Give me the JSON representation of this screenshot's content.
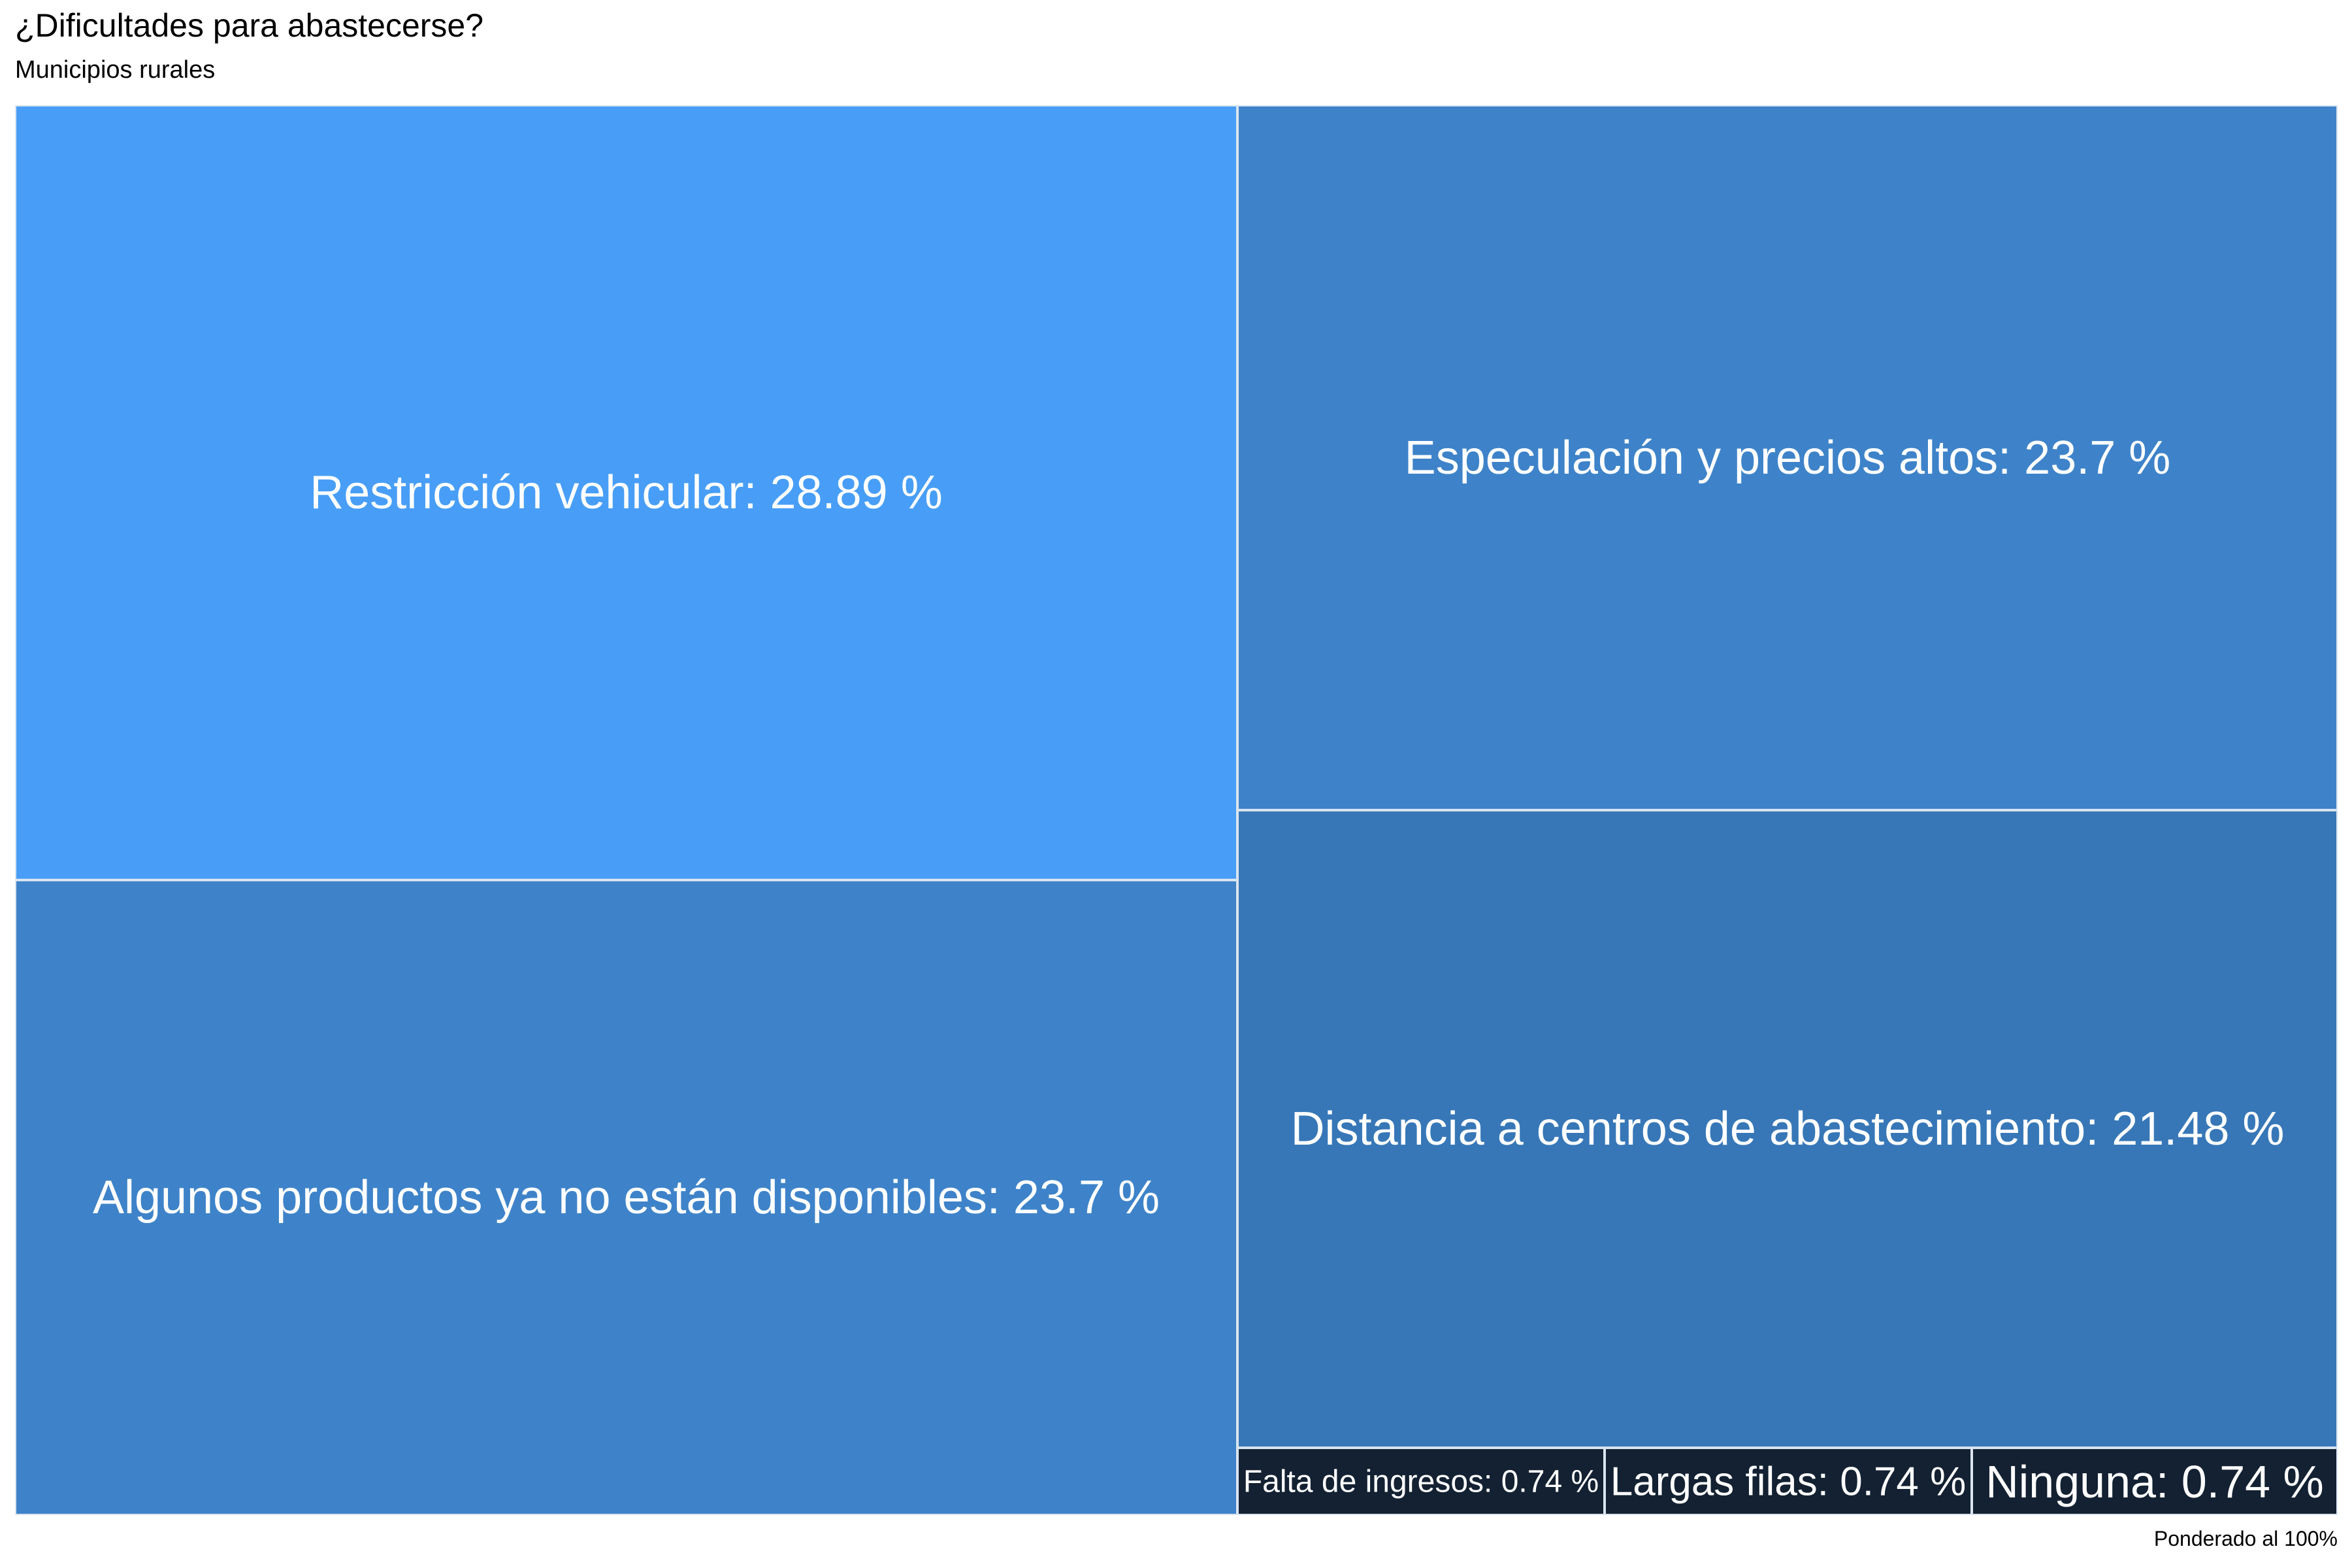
{
  "chart_data": {
    "type": "treemap",
    "title": "¿Dificultades para abastecerse?",
    "subtitle": "Municipios rurales",
    "caption": "Ponderado al 100%",
    "items": [
      {
        "label": "Restricción vehicular: 28.89 %",
        "category": "Restricción vehicular",
        "value": 28.89,
        "color": "#489ef6"
      },
      {
        "label": "Algunos productos ya no están disponibles: 23.7 %",
        "category": "Algunos productos ya no están disponibles",
        "value": 23.7,
        "color": "#3e83c9"
      },
      {
        "label": "Especulación y precios altos: 23.7 %",
        "category": "Especulación y precios altos",
        "value": 23.7,
        "color": "#3e83c9"
      },
      {
        "label": "Distancia a centros de abastecimiento: 21.48 %",
        "category": "Distancia a centros de abastecimiento",
        "value": 21.48,
        "color": "#3777b7"
      },
      {
        "label": "Falta de ingresos: 0.74 %",
        "category": "Falta de ingresos",
        "value": 0.74,
        "color": "#132132"
      },
      {
        "label": "Largas filas: 0.74 %",
        "category": "Largas filas",
        "value": 0.74,
        "color": "#132132"
      },
      {
        "label": "Ninguna: 0.74 %",
        "category": "Ninguna",
        "value": 0.74,
        "color": "#132132"
      }
    ]
  }
}
